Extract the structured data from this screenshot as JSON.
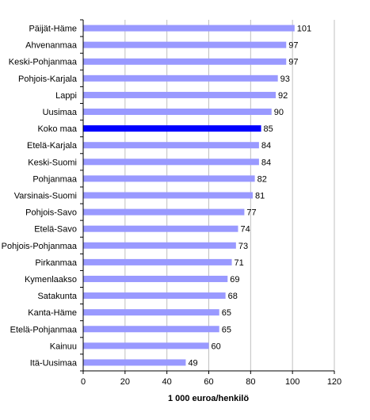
{
  "chart_data": {
    "type": "bar",
    "orientation": "horizontal",
    "categories": [
      "Päijät-Häme",
      "Ahvenanmaa",
      "Keski-Pohjanmaa",
      "Pohjois-Karjala",
      "Lappi",
      "Uusimaa",
      "Koko maa",
      "Etelä-Karjala",
      "Keski-Suomi",
      "Pohjanmaa",
      "Varsinais-Suomi",
      "Pohjois-Savo",
      "Etelä-Savo",
      "Pohjois-Pohjanmaa",
      "Pirkanmaa",
      "Kymenlaakso",
      "Satakunta",
      "Kanta-Häme",
      "Etelä-Pohjanmaa",
      "Kainuu",
      "Itä-Uusimaa"
    ],
    "values": [
      101,
      97,
      97,
      93,
      92,
      90,
      85,
      84,
      84,
      82,
      81,
      77,
      74,
      73,
      71,
      69,
      68,
      65,
      65,
      60,
      49
    ],
    "highlight": "Koko maa",
    "xlabel": "1 000 euroa/henkilö",
    "xlim": [
      0,
      120
    ],
    "xticks": [
      0,
      20,
      40,
      60,
      80,
      100,
      120
    ],
    "grid": true,
    "data_labels": true,
    "colors": {
      "bar": "#9999ff",
      "highlight": "#0000ff",
      "grid": "#c0c0c0",
      "axis": "#000000"
    }
  }
}
